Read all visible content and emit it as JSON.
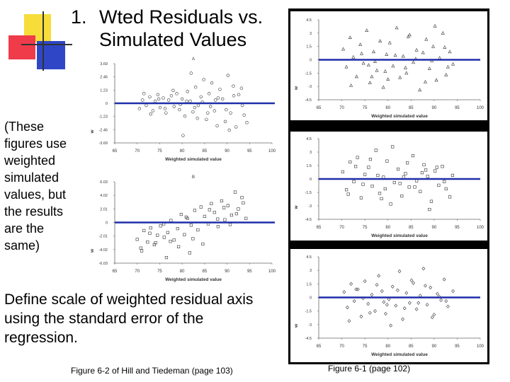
{
  "slide": {
    "title_number": "1.",
    "title_line1": "Wted Residuals vs.",
    "title_line2": "Simulated Values",
    "note": "(These figures use weighted simulated values, but the results are the same)",
    "define_text": "Define scale of weighted residual axis using the standard error of the regression.",
    "caption_left": "Figure 6-2 of Hill and Tiedeman (page 103)",
    "caption_right": "Figure 6-1 (page 102)"
  },
  "colors": {
    "zero_line": "#1f2fa8",
    "deco_yellow": "#f6dd3a",
    "deco_red": "#ef3b4a",
    "deco_blue": "#2f47c6",
    "frame": "#000000"
  },
  "chart_data": [
    {
      "type": "scatter",
      "panel_label": "A",
      "xlabel": "Weighted simulated value",
      "ylabel": "w",
      "xlim": [
        65,
        100
      ],
      "ylim": [
        -3.69,
        3.69
      ],
      "xticks": [
        "65",
        "70",
        "75",
        "80",
        "85",
        "90",
        "95",
        "100"
      ],
      "yticks": [
        "3.69",
        "2.46",
        "1.23",
        "0",
        "-1.23",
        "-2.46",
        "-3.69"
      ],
      "ytick_values": [
        3.69,
        2.46,
        1.23,
        0,
        -1.23,
        -2.46,
        -3.69
      ],
      "x": [
        70.5,
        71.2,
        72,
        72.8,
        73.5,
        74,
        74.6,
        75.1,
        75.8,
        76.4,
        77,
        77.6,
        78.2,
        78.8,
        79.4,
        80,
        80.6,
        81.2,
        81.8,
        82.4,
        83,
        83.6,
        84.2,
        84.8,
        85.4,
        86,
        86.6,
        87.2,
        87.8,
        88.4,
        89,
        89.6,
        90.2,
        90.8,
        91.4,
        92,
        92.6,
        93.2,
        93.8,
        94.4,
        71.5,
        73,
        74.8,
        76.2,
        78,
        79.6,
        81,
        82.8,
        84.5,
        86.3,
        88,
        89.8,
        91.5,
        93.4,
        80.2,
        82,
        83.4,
        85.7,
        87.4,
        90.5
      ],
      "y": [
        -0.5,
        0.3,
        -0.2,
        0.6,
        -0.7,
        0.2,
        0.8,
        -0.4,
        0.5,
        -0.9,
        0.3,
        0.7,
        -0.3,
        0.9,
        -0.6,
        0.4,
        -1.2,
        1.1,
        0.2,
        -0.8,
        1.5,
        -0.2,
        0.6,
        2.2,
        -1.5,
        0.9,
        1.9,
        -0.7,
        -2.1,
        1.3,
        0.4,
        -1.7,
        2.6,
        -0.9,
        1.6,
        -2.2,
        0.8,
        1.4,
        -1.1,
        -1.8,
        0.9,
        -1,
        0.4,
        -0.5,
        1.2,
        -0.1,
        0.2,
        -0.4,
        0.1,
        -0.3,
        0.5,
        -0.6,
        0.7,
        -0.2,
        -3,
        2.8,
        -1.4,
        -0.9,
        0.3,
        -2.5
      ],
      "marker": "circle"
    },
    {
      "type": "scatter",
      "panel_label": "B",
      "xlabel": "Weighted simulated value",
      "ylabel": "w",
      "xlim": [
        65,
        100
      ],
      "ylim": [
        -6.03,
        6.03
      ],
      "xticks": [
        "65",
        "70",
        "75",
        "80",
        "85",
        "90",
        "95",
        "100"
      ],
      "yticks": [
        "6.03",
        "4.02",
        "2.01",
        "0",
        "-2.01",
        "-4.02",
        "-6.03"
      ],
      "ytick_values": [
        6.03,
        4.02,
        2.01,
        0,
        -2.01,
        -4.02,
        -6.03
      ],
      "x": [
        70,
        70.8,
        71.5,
        72.3,
        73,
        73.8,
        74.5,
        75.2,
        76,
        76.8,
        77.5,
        78.2,
        79,
        79.8,
        80.5,
        81.2,
        82,
        82.8,
        83.5,
        84.2,
        85,
        85.8,
        86.5,
        87.2,
        88,
        88.8,
        89.5,
        90.2,
        91,
        91.8,
        92.5,
        93.3,
        71,
        72.8,
        74.1,
        75.9,
        77.4,
        79.2,
        80.9,
        82.4,
        84.6,
        86.1,
        87.9,
        89.3,
        90.7,
        92.1,
        93.6,
        94.2,
        76.5,
        81.7
      ],
      "y": [
        -2.5,
        -3.8,
        -1.2,
        -2.9,
        -0.8,
        -3.3,
        -1.9,
        -0.5,
        -2.2,
        -1.5,
        0.3,
        -2.6,
        -0.9,
        1.2,
        -1.8,
        0.6,
        -0.4,
        1.8,
        -1.1,
        2.3,
        0.9,
        -0.2,
        2.8,
        1.5,
        -0.6,
        3.2,
        0.4,
        2.5,
        1.1,
        4.5,
        2,
        3.7,
        -4.2,
        -1.6,
        -3,
        -0.2,
        -2.8,
        -3.6,
        0.8,
        -2.4,
        -3.2,
        1.9,
        0.5,
        2.2,
        -0.3,
        1.3,
        2.9,
        0.6,
        -5.2,
        -4.5
      ],
      "marker": "square"
    },
    {
      "type": "scatter",
      "xlabel": "Weighted simulated value",
      "ylabel": "w",
      "xlim": [
        65,
        100
      ],
      "ylim": [
        -4.5,
        4.5
      ],
      "xticks": [
        "65",
        "70",
        "75",
        "80",
        "85",
        "90",
        "95",
        "100"
      ],
      "yticks": [
        "4.5",
        "3",
        "1.5",
        "0",
        "-1.5",
        "-3",
        "-4.5"
      ],
      "ytick_values": [
        4.5,
        3,
        1.5,
        0,
        -1.5,
        -3,
        -4.5
      ],
      "x": [
        70.3,
        71,
        71.8,
        72.5,
        73.2,
        74,
        74.7,
        75.4,
        76.1,
        76.9,
        77.6,
        78.3,
        79,
        79.7,
        80.4,
        81.1,
        81.9,
        82.6,
        83.3,
        84,
        84.7,
        85.5,
        86.2,
        86.9,
        87.6,
        88.3,
        89,
        89.8,
        90.5,
        91.2,
        91.9,
        92.6,
        93.4,
        94.1,
        72,
        74.3,
        77.2,
        79.4,
        81.6,
        83.8,
        86,
        88.1,
        90.2,
        92.3,
        75.8,
        80,
        84.4,
        89.5,
        93,
        76.5
      ],
      "y": [
        1.2,
        -0.8,
        2.5,
        0.3,
        -1.9,
        1.7,
        -0.4,
        3.3,
        -2.6,
        0.9,
        -1.2,
        2.1,
        -3.1,
        0.6,
        1.9,
        -0.7,
        3.6,
        -2,
        0.4,
        -1.5,
        2.8,
        -0.3,
        1.1,
        -3.4,
        0.8,
        2.3,
        -1,
        1.5,
        -2.3,
        0.2,
        3,
        -1.7,
        0.9,
        -0.5,
        -2.9,
        0.7,
        -0.2,
        -1.3,
        0.5,
        -0.9,
        0.1,
        -2.5,
        3.8,
        1.4,
        -0.6,
        -2.2,
        2.6,
        -0.1,
        -0.8,
        -1.9
      ],
      "marker": "triangle"
    },
    {
      "type": "scatter",
      "xlabel": "Weighted simulated value",
      "ylabel": "w",
      "xlim": [
        65,
        100
      ],
      "ylim": [
        -4.5,
        4.5
      ],
      "xticks": [
        "65",
        "70",
        "75",
        "80",
        "85",
        "90",
        "95",
        "100"
      ],
      "yticks": [
        "4.5",
        "3",
        "1.5",
        "0",
        "-1.5",
        "-3",
        "-4.5"
      ],
      "ytick_values": [
        4.5,
        3,
        1.5,
        0,
        -1.5,
        -3,
        -4.5
      ],
      "x": [
        70.2,
        71,
        71.8,
        72.6,
        73.4,
        74.2,
        75,
        75.8,
        76.6,
        77.4,
        78.2,
        79,
        79.8,
        80.6,
        81.4,
        82.2,
        83,
        83.8,
        84.6,
        85.4,
        86.2,
        87,
        87.8,
        88.6,
        89.4,
        90.2,
        91,
        91.8,
        92.6,
        93.4,
        71.4,
        73,
        74.6,
        76.2,
        77.8,
        79.4,
        81,
        82.6,
        84.2,
        85.8,
        87.4,
        89,
        90.6,
        92.2,
        94,
        78.6,
        83.4,
        88.2
      ],
      "y": [
        0.8,
        -1.2,
        1.9,
        -0.3,
        2.4,
        -2.1,
        0.5,
        1.3,
        -0.8,
        3.2,
        -1.6,
        0.2,
        2,
        -2.8,
        -0.4,
        1.1,
        -1.9,
        0.6,
        -0.9,
        2.6,
        -0.2,
        -1.4,
        1.6,
        0.3,
        -2.5,
        0.9,
        -0.7,
        1.4,
        -1.1,
        -2,
        -1.7,
        1.4,
        -0.6,
        2.2,
        0.4,
        -1.1,
        3.6,
        -0.5,
        1.8,
        -0.9,
        0.7,
        -3.4,
        1.3,
        -0.3,
        0.4,
        -2.2,
        0.2,
        1
      ],
      "marker": "square"
    },
    {
      "type": "scatter",
      "xlabel": "Weighted simulated value",
      "ylabel": "w",
      "xlim": [
        65,
        100
      ],
      "ylim": [
        -4.5,
        4.5
      ],
      "xticks": [
        "65",
        "70",
        "75",
        "80",
        "85",
        "90",
        "95",
        "100"
      ],
      "yticks": [
        "4.5",
        "3",
        "1.5",
        "0",
        "-1.5",
        "-3",
        "-4.5"
      ],
      "ytick_values": [
        4.5,
        3,
        1.5,
        0,
        -1.5,
        -3,
        -4.5
      ],
      "x": [
        70.5,
        71.2,
        72,
        72.7,
        73.5,
        74.2,
        75,
        75.7,
        76.5,
        77.2,
        78,
        78.7,
        79.5,
        80.2,
        81,
        81.7,
        82.5,
        83.2,
        84,
        84.7,
        85.5,
        86.2,
        87,
        87.7,
        88.5,
        89.2,
        90,
        90.7,
        91.5,
        92.2,
        93,
        71.6,
        73.1,
        74.6,
        76.1,
        77.6,
        79.1,
        80.6,
        82.1,
        83.6,
        85.1,
        86.6,
        88.1,
        89.6,
        91.1,
        92.6,
        94.1,
        79.8
      ],
      "y": [
        0.6,
        -1.1,
        1.5,
        -0.4,
        0.9,
        -2.1,
        1.8,
        -0.7,
        0.3,
        -1.5,
        2.4,
        0.7,
        -1.8,
        -0.2,
        1.2,
        -0.9,
        2.9,
        -2.4,
        0.5,
        -0.6,
        1.6,
        -1.3,
        0.2,
        3.2,
        -0.8,
        1.1,
        -1.9,
        0.4,
        -0.3,
        2,
        -1,
        -2.6,
        0.9,
        -0.1,
        -1.7,
        1.4,
        -0.5,
        -3.1,
        0.8,
        -1.2,
        1.9,
        -0.6,
        1.3,
        -2.2,
        0.1,
        -0.4,
        0.7,
        -0.8
      ],
      "marker": "diamond"
    }
  ]
}
